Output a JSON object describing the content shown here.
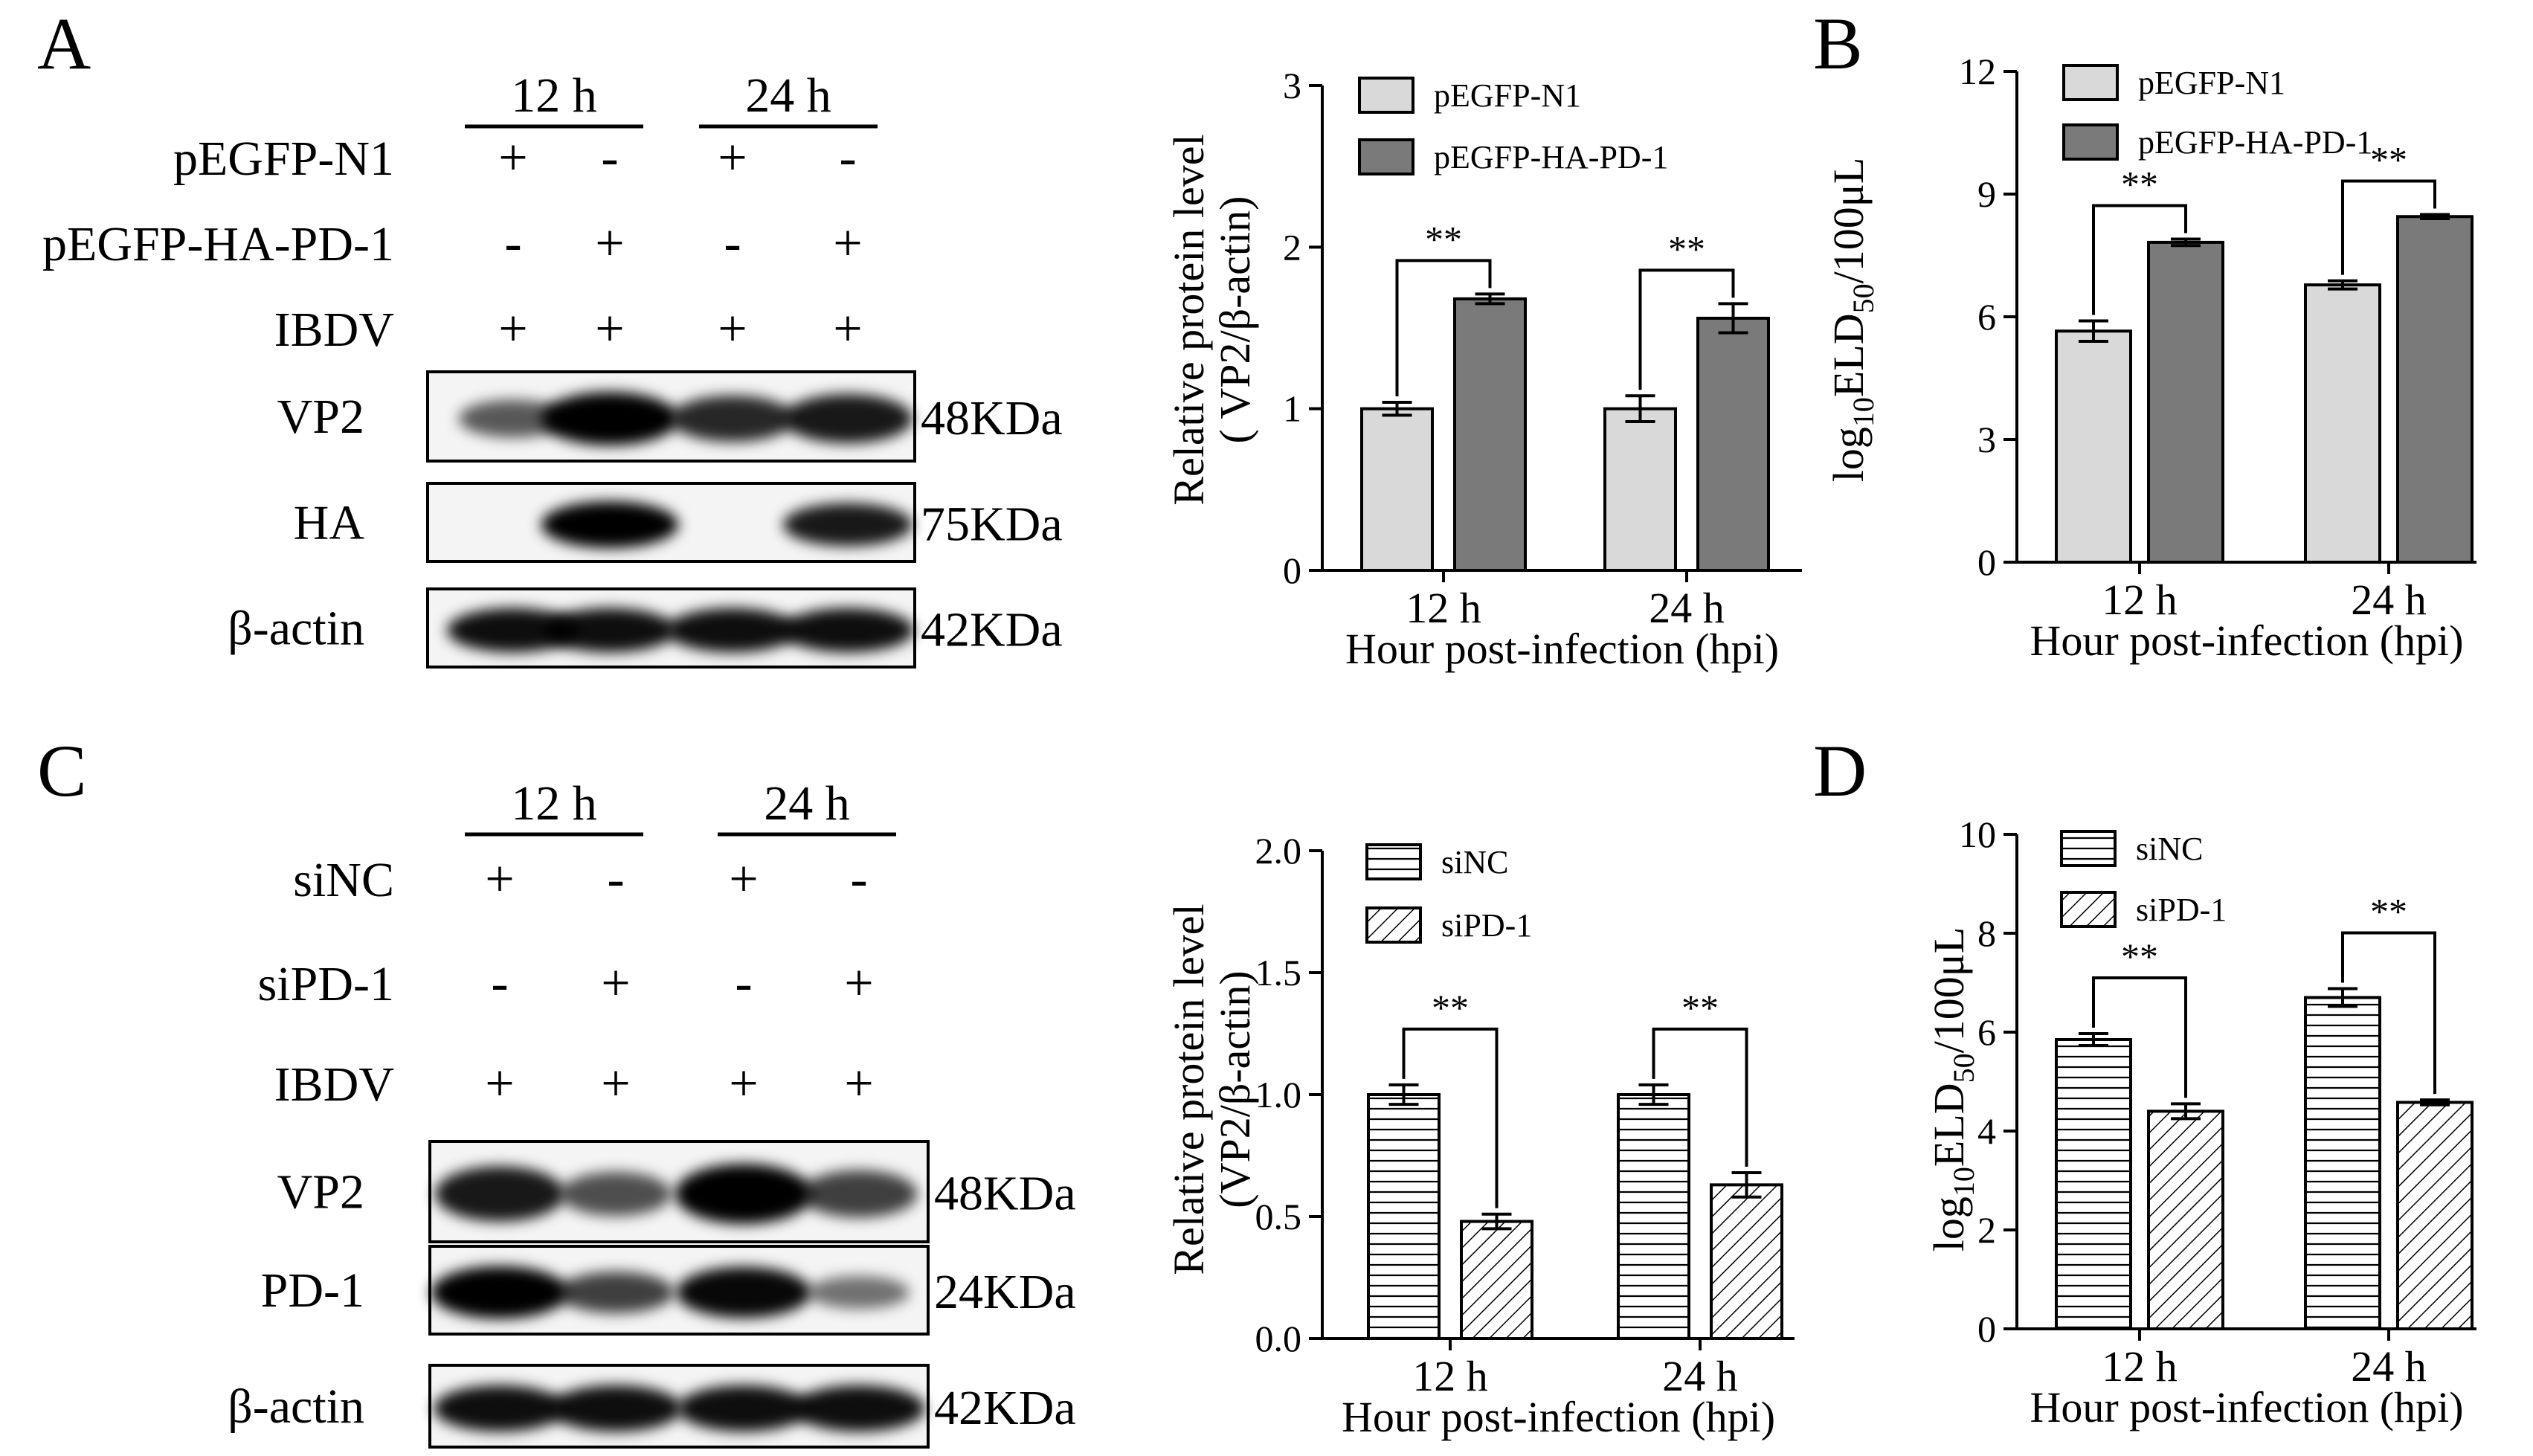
{
  "panels": {
    "A": {
      "letter": "A",
      "blot": {
        "time_groups": [
          "12 h",
          "24 h"
        ],
        "rows": [
          {
            "label": "pEGFP-N1",
            "signs": [
              "+",
              "-",
              "+",
              "-"
            ]
          },
          {
            "label": "pEGFP-HA-PD-1",
            "signs": [
              "-",
              "+",
              "-",
              "+"
            ]
          },
          {
            "label": "IBDV",
            "signs": [
              "+",
              "+",
              "+",
              "+"
            ]
          }
        ],
        "bands": [
          {
            "label": "VP2",
            "size": "48KDa",
            "intensity": [
              0.45,
              1.0,
              0.75,
              0.85
            ]
          },
          {
            "label": "HA",
            "size": "75KDa",
            "intensity": [
              0.0,
              1.0,
              0.0,
              0.85
            ]
          },
          {
            "label": "β-actin",
            "size": "42KDa",
            "intensity": [
              0.9,
              0.9,
              0.9,
              0.9
            ]
          }
        ]
      },
      "chart": {
        "ylabel_line1": "Relative protein level",
        "ylabel_line2": "( VP2/β-actin)",
        "xlabel": "Hour post-infection (hpi)"
      }
    },
    "B": {
      "letter": "B",
      "chart": {
        "ylabel_main": "log",
        "ylabel_sub": "10",
        "ylabel_mid": "ELD",
        "ylabel_sub2": "50",
        "ylabel_tail": "/100μL",
        "xlabel": "Hour post-infection (hpi)"
      }
    },
    "C": {
      "letter": "C",
      "blot": {
        "time_groups": [
          "12 h",
          "24 h"
        ],
        "rows": [
          {
            "label": "siNC",
            "signs": [
              "+",
              "-",
              "+",
              "-"
            ]
          },
          {
            "label": "siPD-1",
            "signs": [
              "-",
              "+",
              "-",
              "+"
            ]
          },
          {
            "label": "IBDV",
            "signs": [
              "+",
              "+",
              "+",
              "+"
            ]
          }
        ],
        "bands": [
          {
            "label": "VP2",
            "size": "48KDa",
            "intensity": [
              0.85,
              0.5,
              1.0,
              0.6
            ]
          },
          {
            "label": "PD-1",
            "size": "24KDa",
            "intensity": [
              1.0,
              0.6,
              0.95,
              0.3
            ]
          },
          {
            "label": "β-actin",
            "size": "42KDa",
            "intensity": [
              0.9,
              0.9,
              0.9,
              0.9
            ]
          }
        ]
      },
      "chart": {
        "ylabel_line1": "Relative protein level",
        "ylabel_line2": "(VP2/β-actin)",
        "xlabel": "Hour post-infection (hpi)"
      }
    },
    "D": {
      "letter": "D",
      "chart": {
        "ylabel_main": "log",
        "ylabel_sub": "10",
        "ylabel_mid": "ELD",
        "ylabel_sub2": "50",
        "ylabel_tail": "/100μL",
        "xlabel": "Hour post-infection (hpi)"
      }
    }
  },
  "colors": {
    "control_fill": "#d9d9d9",
    "treatment_fill": "#7a7a7a",
    "axis": "#000000"
  },
  "chart_data": [
    {
      "panel": "A",
      "type": "bar",
      "categories": [
        "12 h",
        "24 h"
      ],
      "series": [
        {
          "name": "pEGFP-N1",
          "values": [
            1.0,
            1.0
          ],
          "errors": [
            0.04,
            0.08
          ],
          "pattern": "light"
        },
        {
          "name": "pEGFP-HA-PD-1",
          "values": [
            1.68,
            1.56
          ],
          "errors": [
            0.03,
            0.09
          ],
          "pattern": "dark"
        }
      ],
      "ylim": [
        0,
        3
      ],
      "yticks": [
        "0",
        "1",
        "2",
        "3"
      ],
      "significance": [
        "**",
        "**"
      ],
      "legend_position": "top-left"
    },
    {
      "panel": "B",
      "type": "bar",
      "categories": [
        "12 h",
        "24 h"
      ],
      "series": [
        {
          "name": "pEGFP-N1",
          "values": [
            5.65,
            6.78
          ],
          "errors": [
            0.25,
            0.1
          ],
          "pattern": "light"
        },
        {
          "name": "pEGFP-HA-PD-1",
          "values": [
            7.82,
            8.45
          ],
          "errors": [
            0.08,
            0.05
          ],
          "pattern": "dark"
        }
      ],
      "ylim": [
        0,
        12
      ],
      "yticks": [
        "0",
        "3",
        "6",
        "9",
        "12"
      ],
      "significance": [
        "**",
        "**"
      ],
      "legend_position": "top-left"
    },
    {
      "panel": "C",
      "type": "bar",
      "categories": [
        "12 h",
        "24 h"
      ],
      "series": [
        {
          "name": "siNC",
          "values": [
            1.0,
            1.0
          ],
          "errors": [
            0.04,
            0.04
          ],
          "pattern": "horizontal"
        },
        {
          "name": "siPD-1",
          "values": [
            0.48,
            0.63
          ],
          "errors": [
            0.03,
            0.05
          ],
          "pattern": "diagonal"
        }
      ],
      "ylim": [
        0,
        2.0
      ],
      "yticks": [
        "0.0",
        "0.5",
        "1.0",
        "1.5",
        "2.0"
      ],
      "significance": [
        "**",
        "**"
      ],
      "legend_position": "top-left"
    },
    {
      "panel": "D",
      "type": "bar",
      "categories": [
        "12 h",
        "24 h"
      ],
      "series": [
        {
          "name": "siNC",
          "values": [
            5.85,
            6.7
          ],
          "errors": [
            0.12,
            0.18
          ],
          "pattern": "horizontal"
        },
        {
          "name": "siPD-1",
          "values": [
            4.4,
            4.58
          ],
          "errors": [
            0.15,
            0.05
          ],
          "pattern": "diagonal"
        }
      ],
      "ylim": [
        0,
        10
      ],
      "yticks": [
        "0",
        "2",
        "4",
        "6",
        "8",
        "10"
      ],
      "significance": [
        "**",
        "**"
      ],
      "legend_position": "top-left"
    }
  ]
}
